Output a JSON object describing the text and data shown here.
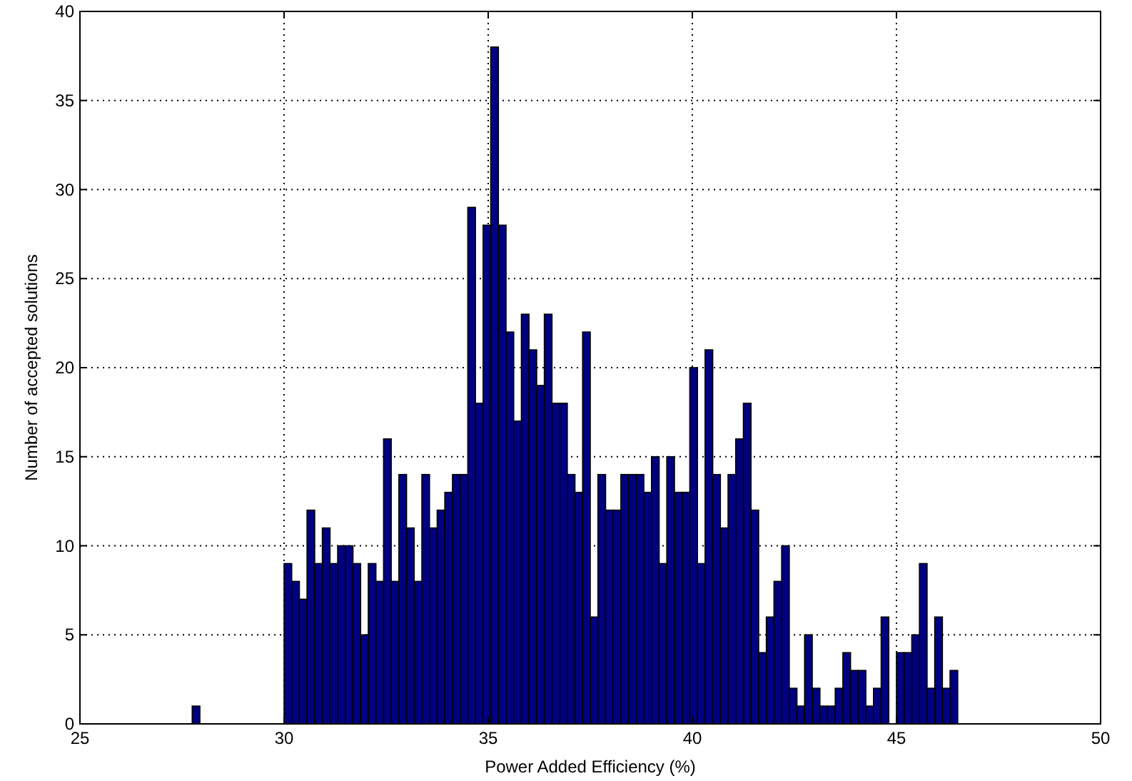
{
  "chart_data": {
    "type": "histogram",
    "xlabel": "Power Added Efficiency (%)",
    "ylabel": "Number of accepted solutions",
    "bins": [
      27.75,
      27.9375,
      28.125,
      28.3125,
      28.5,
      28.6875,
      28.875,
      29.0625,
      29.25,
      29.4375,
      29.625,
      29.8125,
      30,
      30.1875,
      30.375,
      30.5625,
      30.75,
      30.9375,
      31.125,
      31.3125,
      31.5,
      31.6875,
      31.875,
      32.0625,
      32.25,
      32.4375,
      32.625,
      32.8125,
      33,
      33.1875,
      33.375,
      33.5625,
      33.75,
      33.9375,
      34.125,
      34.3125,
      34.5,
      34.6875,
      34.875,
      35.0625,
      35.25,
      35.4375,
      35.625,
      35.8125,
      36,
      36.1875,
      36.375,
      36.5625,
      36.75,
      36.9375,
      37.125,
      37.3125,
      37.5,
      37.6875,
      37.875,
      38.0625,
      38.25,
      38.4375,
      38.625,
      38.8125,
      39,
      39.1875,
      39.375,
      39.5625,
      39.75,
      39.9375,
      40.125,
      40.3125,
      40.5,
      40.6875,
      40.875,
      41.0625,
      41.25,
      41.4375,
      41.625,
      41.8125,
      42,
      42.1875,
      42.375,
      42.5625,
      42.75,
      42.9375,
      43.125,
      43.3125,
      43.5,
      43.6875,
      43.875,
      44.0625,
      44.25,
      44.4375,
      44.625,
      44.8125,
      45,
      45.1875,
      45.375,
      45.5625,
      45.75,
      45.9375,
      46.125,
      46.3125,
      46.5
    ],
    "values": [
      1,
      0,
      0,
      0,
      0,
      0,
      0,
      0,
      0,
      0,
      0,
      0,
      9,
      8,
      7,
      12,
      9,
      11,
      9,
      10,
      10,
      9,
      5,
      9,
      8,
      16,
      8,
      14,
      11,
      8,
      14,
      11,
      12,
      13,
      14,
      14,
      29,
      18,
      28,
      38,
      28,
      22,
      17,
      23,
      21,
      19,
      23,
      18,
      18,
      14,
      13,
      22,
      6,
      14,
      12,
      12,
      14,
      14,
      14,
      13,
      15,
      9,
      15,
      13,
      13,
      20,
      9,
      21,
      14,
      11,
      14,
      16,
      18,
      12,
      4,
      6,
      8,
      10,
      2,
      1,
      5,
      2,
      1,
      1,
      2,
      4,
      3,
      3,
      1,
      2,
      6,
      0,
      4,
      4,
      5,
      9,
      2,
      6,
      2,
      3
    ],
    "color": "#000080",
    "xlim": [
      25,
      50
    ],
    "xticks": [
      25,
      30,
      35,
      40,
      45,
      50
    ],
    "ylim": [
      0,
      40
    ],
    "yticks": [
      0,
      5,
      10,
      15,
      20,
      25,
      30,
      35,
      40
    ],
    "grid": true
  }
}
